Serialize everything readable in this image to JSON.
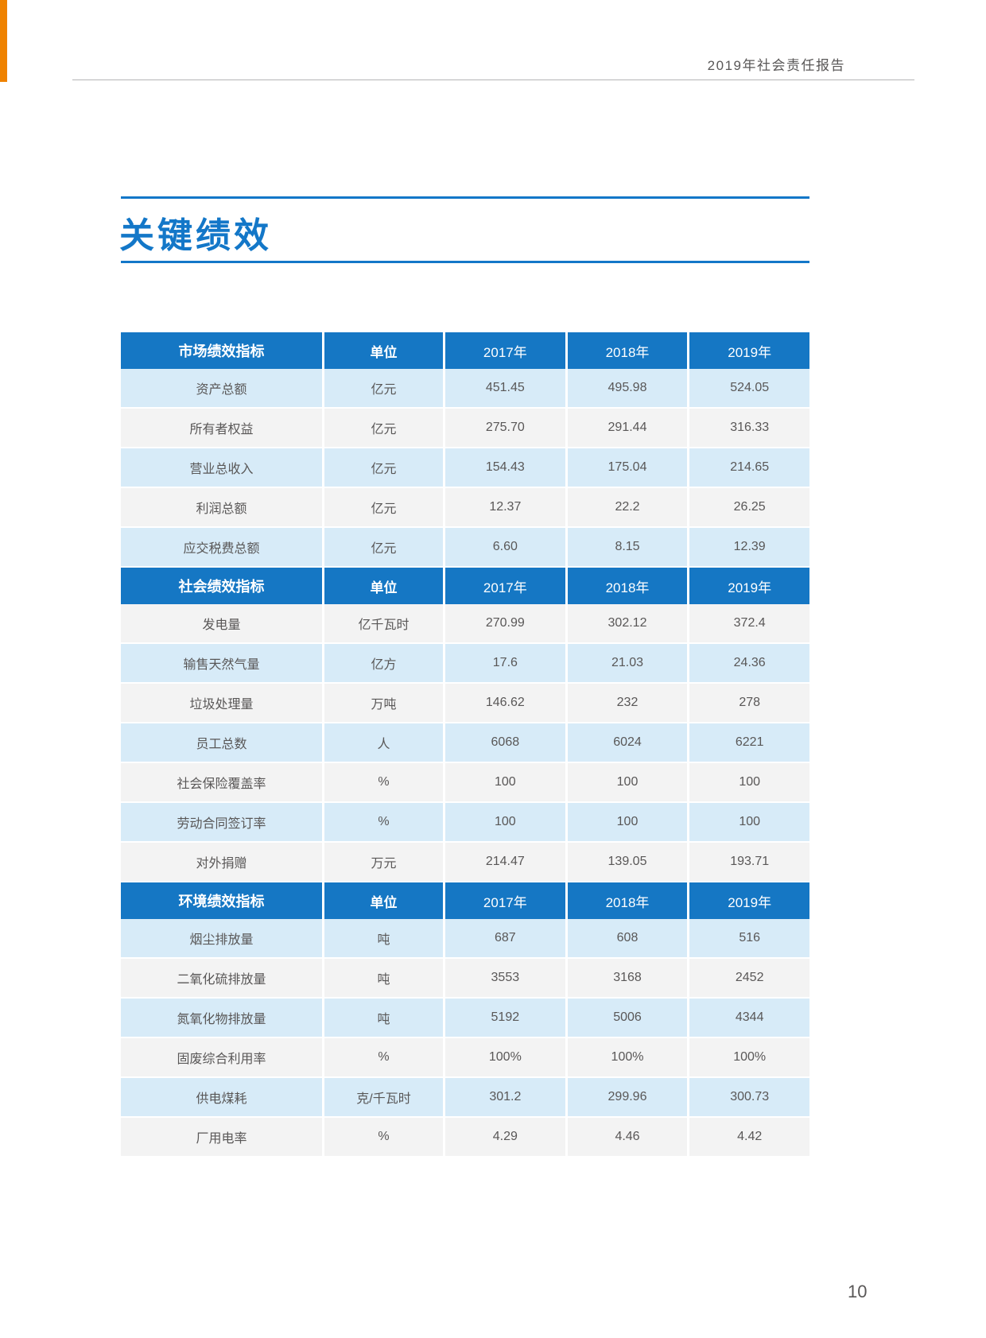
{
  "page": {
    "header_text": "2019年社会责任报告",
    "title": "关键绩效",
    "page_number": "10"
  },
  "colors": {
    "accent_blue": "#1577c4",
    "title_blue": "#1377c8",
    "row_blue": "#d7ebf8",
    "row_gray": "#f3f3f3",
    "orange_strip": "#ef8200",
    "text_gray": "#595757"
  },
  "table": {
    "sections": [
      {
        "header": {
          "label": "市场绩效指标",
          "unit": "单位",
          "years": [
            "2017年",
            "2018年",
            "2019年"
          ]
        },
        "rows": [
          {
            "indicator": "资产总额",
            "unit": "亿元",
            "values": [
              "451.45",
              "495.98",
              "524.05"
            ]
          },
          {
            "indicator": "所有者权益",
            "unit": "亿元",
            "values": [
              "275.70",
              "291.44",
              "316.33"
            ]
          },
          {
            "indicator": "营业总收入",
            "unit": "亿元",
            "values": [
              "154.43",
              "175.04",
              "214.65"
            ]
          },
          {
            "indicator": "利润总额",
            "unit": "亿元",
            "values": [
              "12.37",
              "22.2",
              "26.25"
            ]
          },
          {
            "indicator": "应交税费总额",
            "unit": "亿元",
            "values": [
              "6.60",
              "8.15",
              "12.39"
            ]
          }
        ]
      },
      {
        "header": {
          "label": "社会绩效指标",
          "unit": "单位",
          "years": [
            "2017年",
            "2018年",
            "2019年"
          ]
        },
        "rows": [
          {
            "indicator": "发电量",
            "unit": "亿千瓦时",
            "values": [
              "270.99",
              "302.12",
              "372.4"
            ]
          },
          {
            "indicator": "输售天然气量",
            "unit": "亿方",
            "values": [
              "17.6",
              "21.03",
              "24.36"
            ]
          },
          {
            "indicator": "垃圾处理量",
            "unit": "万吨",
            "values": [
              "146.62",
              "232",
              "278"
            ]
          },
          {
            "indicator": "员工总数",
            "unit": "人",
            "values": [
              "6068",
              "6024",
              "6221"
            ]
          },
          {
            "indicator": "社会保险覆盖率",
            "unit": "%",
            "values": [
              "100",
              "100",
              "100"
            ]
          },
          {
            "indicator": "劳动合同签订率",
            "unit": "%",
            "values": [
              "100",
              "100",
              "100"
            ]
          },
          {
            "indicator": "对外捐赠",
            "unit": "万元",
            "values": [
              "214.47",
              "139.05",
              "193.71"
            ]
          }
        ]
      },
      {
        "header": {
          "label": "环境绩效指标",
          "unit": "单位",
          "years": [
            "2017年",
            "2018年",
            "2019年"
          ]
        },
        "rows": [
          {
            "indicator": "烟尘排放量",
            "unit": "吨",
            "values": [
              "687",
              "608",
              "516"
            ]
          },
          {
            "indicator": "二氧化硫排放量",
            "unit": "吨",
            "values": [
              "3553",
              "3168",
              "2452"
            ]
          },
          {
            "indicator": "氮氧化物排放量",
            "unit": "吨",
            "values": [
              "5192",
              "5006",
              "4344"
            ]
          },
          {
            "indicator": "固废综合利用率",
            "unit": "%",
            "values": [
              "100%",
              "100%",
              "100%"
            ]
          },
          {
            "indicator": "供电煤耗",
            "unit": "克/千瓦时",
            "values": [
              "301.2",
              "299.96",
              "300.73"
            ]
          },
          {
            "indicator": "厂用电率",
            "unit": "%",
            "values": [
              "4.29",
              "4.46",
              "4.42"
            ]
          }
        ]
      }
    ]
  }
}
